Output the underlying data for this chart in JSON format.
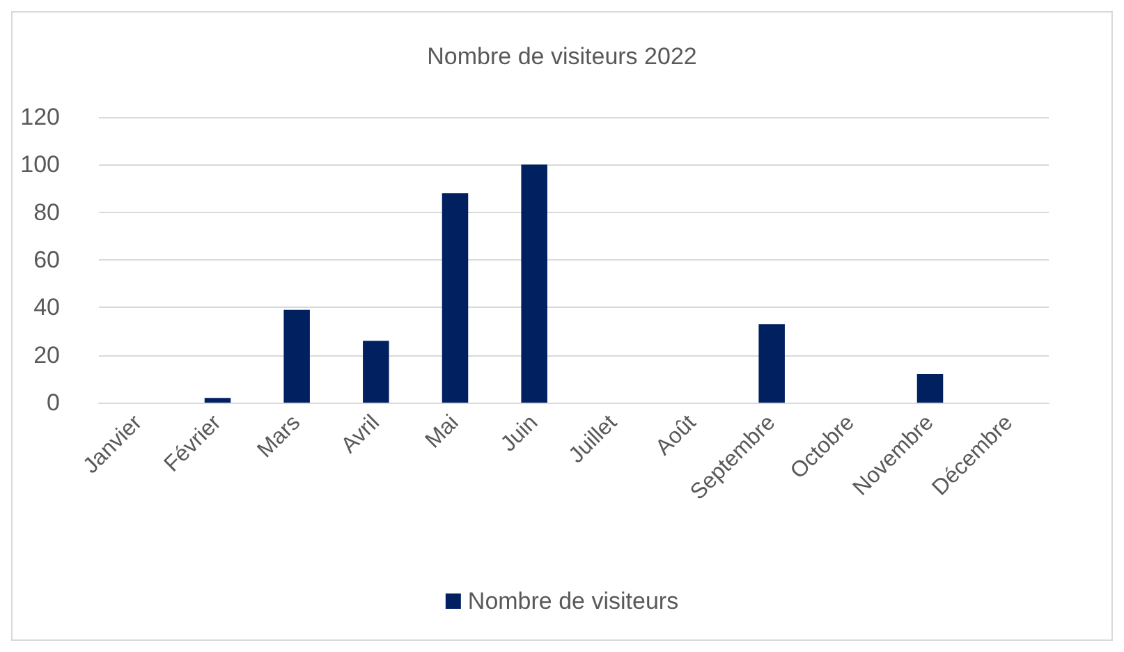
{
  "chart_data": {
    "type": "bar",
    "title": "Nombre de visiteurs 2022",
    "categories": [
      "Janvier",
      "Février",
      "Mars",
      "Avril",
      "Mai",
      "Juin",
      "Juillet",
      "Août",
      "Septembre",
      "Octobre",
      "Novembre",
      "Décembre"
    ],
    "series": [
      {
        "name": "Nombre de visiteurs",
        "color": "#002060",
        "values": [
          0,
          2,
          39,
          26,
          88,
          100,
          0,
          0,
          33,
          0,
          12,
          0
        ]
      }
    ],
    "ylim": [
      0,
      120
    ],
    "yticks": [
      0,
      20,
      40,
      60,
      80,
      100,
      120
    ],
    "grid": "y",
    "legend": "bottom"
  }
}
